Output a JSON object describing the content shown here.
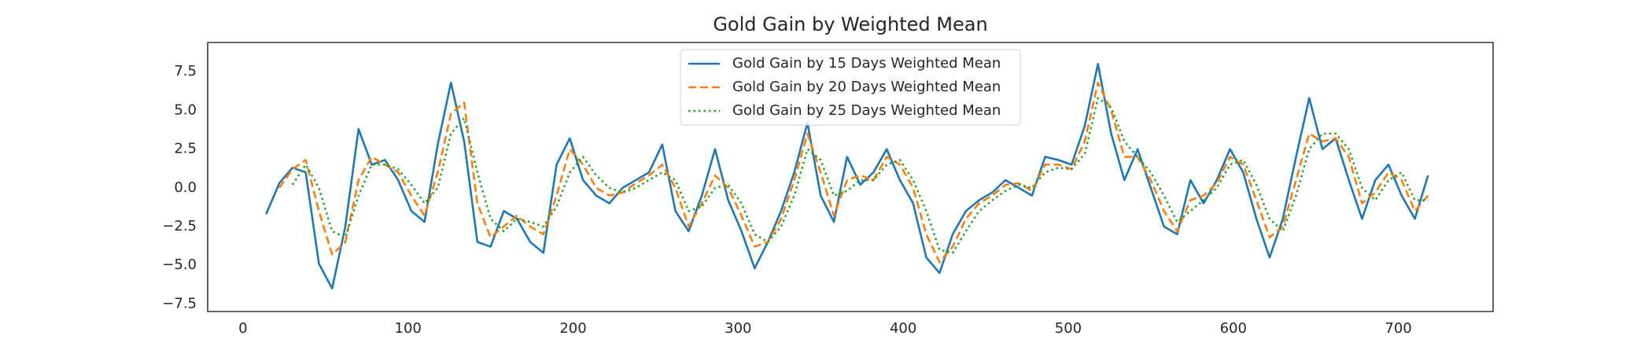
{
  "chart_data": {
    "type": "line",
    "title": "Gold Gain by Weighted Mean",
    "x": [
      14,
      22,
      30,
      38,
      46,
      54,
      62,
      70,
      78,
      86,
      94,
      102,
      110,
      118,
      126,
      134,
      142,
      150,
      158,
      166,
      174,
      182,
      190,
      198,
      206,
      214,
      222,
      230,
      238,
      246,
      254,
      262,
      270,
      278,
      286,
      294,
      302,
      310,
      318,
      326,
      334,
      342,
      350,
      358,
      366,
      374,
      382,
      390,
      398,
      406,
      414,
      422,
      430,
      438,
      446,
      454,
      462,
      470,
      478,
      486,
      494,
      502,
      510,
      518,
      526,
      534,
      542,
      550,
      558,
      566,
      574,
      582,
      590,
      598,
      606,
      614,
      622,
      630,
      638,
      646,
      654,
      662,
      670,
      678,
      686,
      694,
      702,
      710,
      718
    ],
    "series": [
      {
        "name": "Gold Gain by 15 Days Weighted Mean",
        "color": "#1f77b4",
        "linestyle": "solid",
        "values": [
          -1.7,
          0.3,
          1.3,
          1.0,
          -4.9,
          -6.5,
          -2.5,
          3.8,
          1.5,
          1.8,
          0.5,
          -1.5,
          -2.2,
          2.8,
          6.8,
          3.0,
          -3.5,
          -3.8,
          -1.5,
          -2.0,
          -3.5,
          -4.2,
          1.5,
          3.2,
          0.5,
          -0.5,
          -1.0,
          0.0,
          0.5,
          1.0,
          2.8,
          -1.5,
          -2.8,
          -0.5,
          2.5,
          -0.8,
          -2.8,
          -5.2,
          -3.5,
          -1.5,
          1.0,
          4.2,
          -0.5,
          -2.2,
          2.0,
          0.2,
          1.0,
          2.5,
          0.5,
          -1.0,
          -4.5,
          -5.5,
          -3.0,
          -1.5,
          -0.8,
          -0.3,
          0.5,
          0.0,
          -0.5,
          2.0,
          1.8,
          1.5,
          4.0,
          8.0,
          3.5,
          0.5,
          2.5,
          0.0,
          -2.5,
          -3.0,
          0.5,
          -1.0,
          0.5,
          2.5,
          1.0,
          -2.0,
          -4.5,
          -2.0,
          2.0,
          5.8,
          2.5,
          3.2,
          0.5,
          -2.0,
          0.5,
          1.5,
          -0.5,
          -2.0,
          0.8
        ]
      },
      {
        "name": "Gold Gain by 20 Days Weighted Mean",
        "color": "#ff7f0e",
        "linestyle": "dashed",
        "values": [
          null,
          0.0,
          1.2,
          1.8,
          -1.5,
          -4.3,
          -3.5,
          0.5,
          2.0,
          1.5,
          1.0,
          -0.5,
          -1.8,
          1.0,
          4.8,
          5.5,
          -1.0,
          -3.2,
          -2.5,
          -1.8,
          -2.5,
          -3.0,
          -0.5,
          2.5,
          1.5,
          0.0,
          -0.5,
          -0.3,
          0.3,
          0.8,
          1.5,
          0.0,
          -2.5,
          -1.0,
          0.8,
          0.0,
          -1.8,
          -3.8,
          -3.5,
          -2.0,
          0.5,
          3.5,
          1.0,
          -1.8,
          0.5,
          0.8,
          0.5,
          2.0,
          1.5,
          0.0,
          -3.0,
          -4.8,
          -3.8,
          -2.0,
          -1.0,
          -0.5,
          0.2,
          0.3,
          -0.2,
          1.5,
          1.5,
          1.2,
          3.0,
          6.8,
          5.0,
          2.0,
          2.0,
          0.5,
          -1.5,
          -2.8,
          -0.8,
          -0.5,
          0.3,
          2.0,
          1.5,
          -0.8,
          -3.2,
          -2.5,
          0.5,
          3.5,
          3.0,
          3.2,
          2.0,
          -1.0,
          -0.3,
          1.0,
          0.5,
          -1.5,
          -0.5
        ]
      },
      {
        "name": "Gold Gain by 25 Days Weighted Mean",
        "color": "#2ca02c",
        "linestyle": "dotted",
        "values": [
          null,
          null,
          0.2,
          1.5,
          0.0,
          -2.8,
          -3.2,
          -0.5,
          1.5,
          1.5,
          1.2,
          0.2,
          -1.0,
          0.0,
          3.5,
          4.5,
          1.0,
          -2.0,
          -2.8,
          -2.0,
          -2.2,
          -2.5,
          -1.2,
          1.0,
          2.0,
          0.8,
          0.0,
          -0.3,
          0.0,
          0.5,
          1.0,
          0.5,
          -1.5,
          -1.2,
          0.0,
          0.2,
          -1.0,
          -3.0,
          -3.5,
          -2.5,
          -0.5,
          2.5,
          1.8,
          -0.5,
          -0.2,
          0.5,
          0.5,
          1.5,
          1.8,
          0.5,
          -1.5,
          -4.0,
          -4.2,
          -2.8,
          -1.5,
          -0.8,
          -0.2,
          0.2,
          0.0,
          1.0,
          1.3,
          1.2,
          2.2,
          5.8,
          5.2,
          3.0,
          2.0,
          1.0,
          -0.5,
          -2.2,
          -1.5,
          -0.8,
          0.0,
          1.5,
          1.8,
          0.2,
          -2.0,
          -2.8,
          -0.5,
          2.5,
          3.5,
          3.5,
          2.5,
          0.0,
          -0.8,
          0.5,
          1.0,
          -0.8,
          -0.8
        ]
      }
    ],
    "xlim": [
      -21.4,
      757.4
    ],
    "ylim": [
      -7.99,
      9.39
    ],
    "xticks": [
      0,
      100,
      200,
      300,
      400,
      500,
      600,
      700
    ],
    "yticks": [
      {
        "value": -7.5,
        "label": "−7.5"
      },
      {
        "value": -5,
        "label": "−5.0"
      },
      {
        "value": -2.5,
        "label": "−2.5"
      },
      {
        "value": 0,
        "label": "0.0"
      },
      2.5,
      {
        "value": 5,
        "label": "5.0"
      },
      7.5
    ],
    "grid": false,
    "legend": "upper center"
  }
}
